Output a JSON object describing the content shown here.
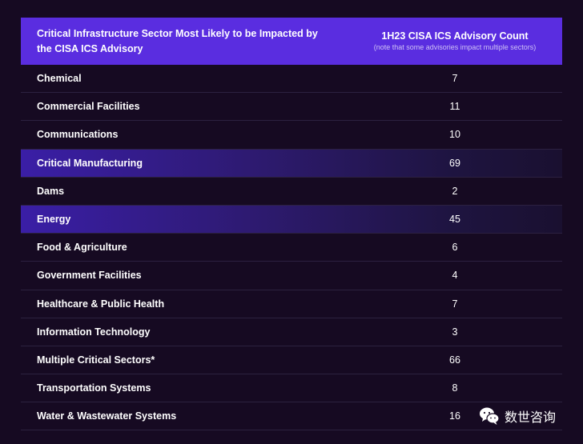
{
  "header": {
    "sector_title": "Critical Infrastructure Sector Most Likely to be Impacted by the CISA ICS Advisory",
    "count_title": "1H23 CISA ICS Advisory Count",
    "count_note": "(note that some advisories impact multiple sectors)"
  },
  "rows": [
    {
      "sector": "Chemical",
      "count": "7",
      "highlight": false
    },
    {
      "sector": "Commercial Facilities",
      "count": "11",
      "highlight": false
    },
    {
      "sector": "Communications",
      "count": "10",
      "highlight": false
    },
    {
      "sector": "Critical Manufacturing",
      "count": "69",
      "highlight": true
    },
    {
      "sector": "Dams",
      "count": "2",
      "highlight": false
    },
    {
      "sector": "Energy",
      "count": "45",
      "highlight": true
    },
    {
      "sector": "Food & Agriculture",
      "count": "6",
      "highlight": false
    },
    {
      "sector": "Government Facilities",
      "count": "4",
      "highlight": false
    },
    {
      "sector": "Healthcare & Public Health",
      "count": "7",
      "highlight": false
    },
    {
      "sector": "Information Technology",
      "count": "3",
      "highlight": false
    },
    {
      "sector": "Multiple Critical Sectors*",
      "count": "66",
      "highlight": false
    },
    {
      "sector": "Transportation Systems",
      "count": "8",
      "highlight": false
    },
    {
      "sector": "Water & Wastewater Systems",
      "count": "16",
      "highlight": false
    }
  ],
  "watermark": {
    "text": "数世咨询",
    "icon": "wechat-icon"
  },
  "colors": {
    "background": "#160a22",
    "header": "#5a2de0",
    "highlight": "#3a1ea6"
  }
}
